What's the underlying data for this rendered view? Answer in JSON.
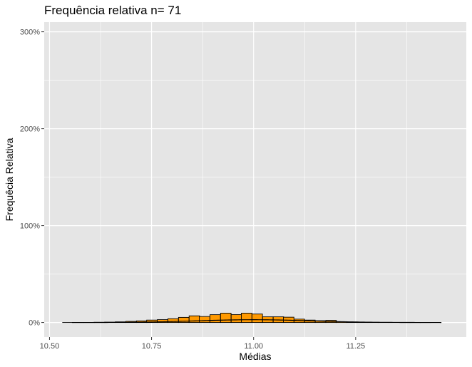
{
  "chart_data": {
    "type": "bar",
    "title": "Frequência relativa n= 71",
    "xlabel": "Médias",
    "ylabel": "Frequêcia Relativa",
    "x_ticks": [
      10.5,
      10.75,
      11.0,
      11.25
    ],
    "x_tick_labels": [
      "10.50",
      "10.75",
      "11.00",
      "11.25"
    ],
    "y_ticks": [
      0,
      1,
      2,
      3
    ],
    "y_tick_labels": [
      "0%",
      "100%",
      "200%",
      "300%"
    ],
    "xlim": [
      10.487,
      11.521
    ],
    "ylim": [
      -0.15,
      3.1
    ],
    "grid": true,
    "colors": {
      "panel": "#e5e5e5",
      "grid": "#ffffff",
      "bar_fill": "#ff9900",
      "bar_stroke": "#000000",
      "curve": "#000000"
    },
    "histogram": {
      "bin_width": 0.02576,
      "bin_starts": [
        10.532,
        10.558,
        10.584,
        10.61,
        10.635,
        10.661,
        10.687,
        10.713,
        10.738,
        10.764,
        10.79,
        10.816,
        10.842,
        10.867,
        10.893,
        10.919,
        10.945,
        10.97,
        10.996,
        11.022,
        11.048,
        11.073,
        11.099,
        11.125,
        11.151,
        11.177,
        11.202,
        11.228,
        11.254,
        11.28,
        11.305,
        11.331,
        11.357,
        11.383,
        11.408
      ],
      "values": [
        0.0,
        0.0,
        0.0,
        0.002,
        0.004,
        0.007,
        0.012,
        0.017,
        0.025,
        0.03,
        0.04,
        0.053,
        0.069,
        0.062,
        0.081,
        0.097,
        0.082,
        0.097,
        0.088,
        0.059,
        0.059,
        0.055,
        0.035,
        0.025,
        0.019,
        0.022,
        0.009,
        0.006,
        0.004,
        0.001,
        0.0,
        0.0,
        0.0,
        0.0,
        0.0
      ]
    },
    "normal_curve": {
      "mean": 11.0,
      "sd": 0.1375,
      "scale": 1.0,
      "x_from": 10.555,
      "x_to": 11.46
    }
  }
}
